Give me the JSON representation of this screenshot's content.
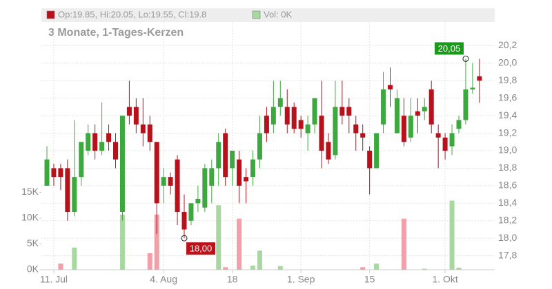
{
  "chart_data": {
    "type": "candlestick",
    "subtitle": "3 Monate, 1-Tages-Kerzen",
    "categories": [
      null,
      "11. Jul",
      null,
      null,
      null,
      null,
      null,
      null,
      null,
      null,
      null,
      null,
      null,
      null,
      null,
      null,
      null,
      "4. Aug",
      null,
      null,
      null,
      null,
      null,
      null,
      null,
      null,
      null,
      "18",
      null,
      null,
      null,
      null,
      null,
      null,
      null,
      null,
      null,
      "1. Sep",
      null,
      null,
      null,
      null,
      null,
      null,
      null,
      null,
      null,
      "15",
      null,
      null,
      null,
      null,
      null,
      null,
      null,
      null,
      null,
      null,
      "1. Okt",
      null,
      null,
      null,
      null,
      null
    ],
    "series": [
      {
        "name": "Op:19.85, Hi:20.05, Lo:19.55, Cl:19.8",
        "color": "#b5121b",
        "up_color": "#3da83d",
        "down_color": "#b5121b",
        "open": [
          18.6,
          18.8,
          18.8,
          18.8,
          18.3,
          18.7,
          19.0,
          19.2,
          19.0,
          19.2,
          19.1,
          18.3,
          19.5,
          19.5,
          19.3,
          19.3,
          19.1,
          18.6,
          18.7,
          18.9,
          18.3,
          18.2,
          18.4,
          18.35,
          18.6,
          18.8,
          19.2,
          18.8,
          18.9,
          18.7,
          18.7,
          18.9,
          19.4,
          19.3,
          19.5,
          19.5,
          19.5,
          19.35,
          19.2,
          19.3,
          19.4,
          19.1,
          18.95,
          19.5,
          19.5,
          19.3,
          19.2,
          19.0,
          18.8,
          19.3,
          19.75,
          19.2,
          19.4,
          19.15,
          19.45,
          19.45,
          19.7,
          19.2,
          19.15,
          19.05,
          19.25,
          19.35,
          19.7,
          19.85
        ],
        "high": [
          19.05,
          18.85,
          18.85,
          18.9,
          19.35,
          19.1,
          19.3,
          19.3,
          19.55,
          19.3,
          19.2,
          19.4,
          19.8,
          19.6,
          19.6,
          19.4,
          19.1,
          18.8,
          18.75,
          18.95,
          18.5,
          18.4,
          18.6,
          18.85,
          18.9,
          19.2,
          19.25,
          19.0,
          19.0,
          18.8,
          19.0,
          19.4,
          19.5,
          19.8,
          19.8,
          19.7,
          19.55,
          19.4,
          19.4,
          19.6,
          19.8,
          19.2,
          19.8,
          19.8,
          19.6,
          19.4,
          19.3,
          19.05,
          19.2,
          19.9,
          19.95,
          19.7,
          19.6,
          19.6,
          19.6,
          19.6,
          19.8,
          19.3,
          19.2,
          19.3,
          19.4,
          20.05,
          20.0,
          20.05
        ],
        "low": [
          18.6,
          18.6,
          18.55,
          18.2,
          18.25,
          18.6,
          18.95,
          18.9,
          18.95,
          19.0,
          18.8,
          18.2,
          19.3,
          19.2,
          19.05,
          19.0,
          18.05,
          18.4,
          18.5,
          18.15,
          18.0,
          18.15,
          18.3,
          18.3,
          18.4,
          18.6,
          18.6,
          18.6,
          18.4,
          18.4,
          18.6,
          18.8,
          19.1,
          19.2,
          19.4,
          19.2,
          19.2,
          19.15,
          19.0,
          19.2,
          18.8,
          18.85,
          18.9,
          19.3,
          19.2,
          19.0,
          19.0,
          18.5,
          18.8,
          19.2,
          19.5,
          19.2,
          19.05,
          19.1,
          19.2,
          19.35,
          19.2,
          18.8,
          18.9,
          18.95,
          19.2,
          19.3,
          19.65,
          19.55
        ],
        "close": [
          18.9,
          18.7,
          18.7,
          18.3,
          18.7,
          19.1,
          19.2,
          19.0,
          19.1,
          19.1,
          18.9,
          19.4,
          19.4,
          19.3,
          19.2,
          19.1,
          18.4,
          18.7,
          18.6,
          18.3,
          18.1,
          18.4,
          18.45,
          18.8,
          18.8,
          19.1,
          18.7,
          19.0,
          18.6,
          18.65,
          18.9,
          19.2,
          19.2,
          19.5,
          19.6,
          19.3,
          19.25,
          19.25,
          19.3,
          19.6,
          19.0,
          18.9,
          19.5,
          19.4,
          19.4,
          19.2,
          19.15,
          18.8,
          19.2,
          19.7,
          19.7,
          19.6,
          19.1,
          19.4,
          19.4,
          19.5,
          19.3,
          19.15,
          19.0,
          19.2,
          19.35,
          19.7,
          19.72,
          19.8
        ]
      },
      {
        "name": "Vol: 0K",
        "color": "#a8d8a0",
        "up_color": "#a8d8a0",
        "down_color": "#f0a0a8",
        "axis": "y2",
        "values": [
          0,
          0,
          1200,
          0,
          4300,
          0,
          0,
          0,
          0,
          0,
          0,
          10700,
          0,
          0,
          0,
          3200,
          10700,
          0,
          0,
          0,
          0,
          0,
          0,
          0,
          0,
          12500,
          500,
          0,
          9900,
          0,
          800,
          3700,
          0,
          0,
          700,
          0,
          0,
          0,
          0,
          0,
          0,
          0,
          0,
          0,
          0,
          0,
          500,
          0,
          1200,
          0,
          0,
          0,
          9900,
          0,
          0,
          200,
          0,
          0,
          0,
          13400,
          400,
          0,
          0,
          0
        ]
      }
    ],
    "ylim": [
      17.64,
      20.47
    ],
    "yticks": [
      {
        "value": 17.8,
        "label": "17,8"
      },
      {
        "value": 18.0,
        "label": "18,0"
      },
      {
        "value": 18.2,
        "label": "18,2"
      },
      {
        "value": 18.4,
        "label": "18,4"
      },
      {
        "value": 18.6,
        "label": "18,6"
      },
      {
        "value": 18.8,
        "label": "18,8"
      },
      {
        "value": 19.0,
        "label": "19,0"
      },
      {
        "value": 19.2,
        "label": "19,2"
      },
      {
        "value": 19.4,
        "label": "19,4"
      },
      {
        "value": 19.6,
        "label": "19,6"
      },
      {
        "value": 19.8,
        "label": "19,8"
      },
      {
        "value": 20.0,
        "label": "20,0"
      },
      {
        "value": 20.2,
        "label": "20,2"
      }
    ],
    "y2lim": [
      0,
      48000
    ],
    "y2ticks": [
      {
        "value": 0,
        "label": "0K"
      },
      {
        "value": 5000,
        "label": "5K"
      },
      {
        "value": 10000,
        "label": "10K"
      },
      {
        "value": 15000,
        "label": "15K"
      }
    ],
    "annotations": [
      {
        "label": "20,05",
        "value": 20.05,
        "color": "#1a9a1a"
      },
      {
        "label": "18,00",
        "value": 18.0,
        "color": "#c0101a"
      }
    ],
    "grid": true
  }
}
